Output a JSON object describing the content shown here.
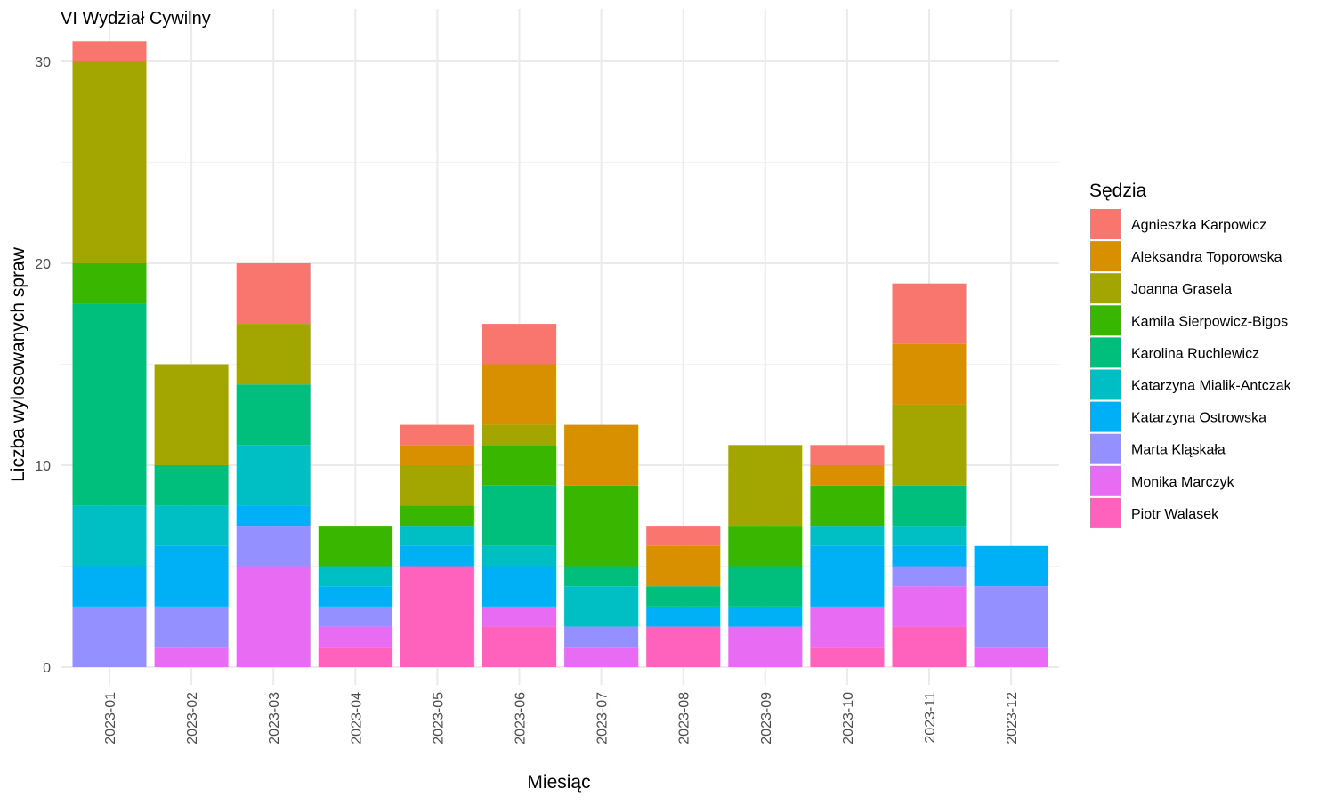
{
  "chart_data": {
    "type": "bar",
    "stacked": true,
    "title": "VI Wydział Cywilny",
    "xlabel": "Miesiąc",
    "ylabel": "Liczba wylosowanych spraw",
    "ylim": [
      0,
      31
    ],
    "yticks": [
      0,
      10,
      20,
      30
    ],
    "grid": true,
    "legend_title": "Sędzia",
    "legend_position": "right",
    "categories": [
      "2023-01",
      "2023-02",
      "2023-03",
      "2023-04",
      "2023-05",
      "2023-06",
      "2023-07",
      "2023-08",
      "2023-09",
      "2023-10",
      "2023-11",
      "2023-12"
    ],
    "series": [
      {
        "name": "Agnieszka Karpowicz",
        "color": "#F8766D",
        "values": [
          1,
          0,
          3,
          0,
          1,
          2,
          0,
          1,
          0,
          1,
          3,
          0
        ]
      },
      {
        "name": "Aleksandra Toporowska",
        "color": "#D89000",
        "values": [
          0,
          0,
          0,
          0,
          1,
          3,
          3,
          2,
          0,
          1,
          3,
          0
        ]
      },
      {
        "name": "Joanna Grasela",
        "color": "#A3A500",
        "values": [
          10,
          5,
          3,
          0,
          2,
          1,
          0,
          0,
          4,
          0,
          4,
          0
        ]
      },
      {
        "name": "Kamila Sierpowicz-Bigos",
        "color": "#39B600",
        "values": [
          2,
          0,
          0,
          2,
          1,
          2,
          4,
          0,
          2,
          2,
          0,
          0
        ]
      },
      {
        "name": "Karolina Ruchlewicz",
        "color": "#00BF7D",
        "values": [
          10,
          2,
          3,
          0,
          0,
          3,
          1,
          1,
          2,
          0,
          2,
          0
        ]
      },
      {
        "name": "Katarzyna Mialik-Antczak",
        "color": "#00BFC4",
        "values": [
          3,
          2,
          3,
          1,
          1,
          1,
          2,
          0,
          0,
          1,
          1,
          0
        ]
      },
      {
        "name": "Katarzyna Ostrowska",
        "color": "#00B0F6",
        "values": [
          2,
          3,
          1,
          1,
          1,
          2,
          0,
          1,
          1,
          3,
          1,
          2
        ]
      },
      {
        "name": "Marta Kląskała",
        "color": "#9590FF",
        "values": [
          3,
          2,
          2,
          1,
          0,
          0,
          1,
          0,
          0,
          0,
          1,
          3
        ]
      },
      {
        "name": "Monika Marczyk",
        "color": "#E76BF3",
        "values": [
          0,
          1,
          5,
          1,
          0,
          1,
          1,
          0,
          2,
          2,
          2,
          1
        ]
      },
      {
        "name": "Piotr Walasek",
        "color": "#FF62BC",
        "values": [
          0,
          0,
          0,
          1,
          5,
          2,
          0,
          2,
          0,
          1,
          2,
          0
        ]
      }
    ]
  }
}
